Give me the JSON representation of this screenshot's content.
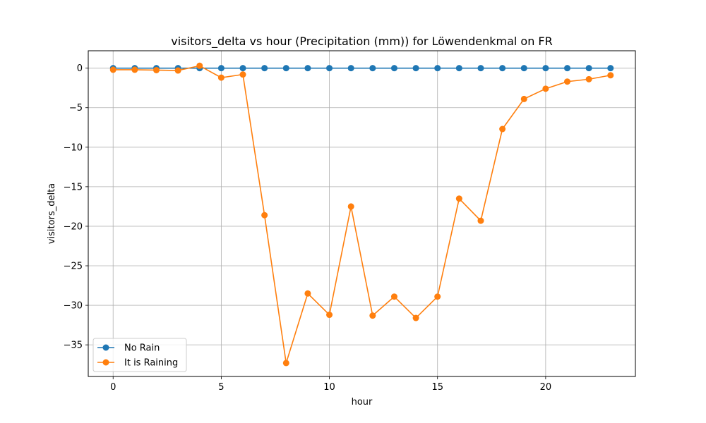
{
  "chart_data": {
    "type": "line",
    "title": "visitors_delta vs hour (Precipitation (mm)) for Löwendenkmal on FR",
    "xlabel": "hour",
    "ylabel": "visitors_delta",
    "xlim": [
      -1.15,
      24.15
    ],
    "ylim": [
      -39,
      2.2
    ],
    "xticks": [
      0,
      5,
      10,
      15,
      20
    ],
    "yticks": [
      0,
      -5,
      -10,
      -15,
      -20,
      -25,
      -30,
      -35
    ],
    "grid": true,
    "legend_position": "lower-left",
    "x": [
      0,
      1,
      2,
      3,
      4,
      5,
      6,
      7,
      8,
      9,
      10,
      11,
      12,
      13,
      14,
      15,
      16,
      17,
      18,
      19,
      20,
      21,
      22,
      23
    ],
    "series": [
      {
        "name": "No Rain",
        "color": "#1f77b4",
        "values": [
          0,
          0,
          0,
          0,
          0,
          0,
          0,
          0,
          0,
          0,
          0,
          0,
          0,
          0,
          0,
          0,
          0,
          0,
          0,
          0,
          0,
          0,
          0,
          0
        ]
      },
      {
        "name": "It is Raining",
        "color": "#ff7f0e",
        "values": [
          -0.2,
          -0.2,
          -0.25,
          -0.3,
          0.3,
          -1.2,
          -0.8,
          -18.6,
          -37.3,
          -28.5,
          -31.2,
          -17.5,
          -31.3,
          -28.9,
          -31.6,
          -28.9,
          -16.5,
          -19.3,
          -7.7,
          -3.9,
          -2.6,
          -1.7,
          -1.4,
          -0.9
        ]
      }
    ]
  }
}
